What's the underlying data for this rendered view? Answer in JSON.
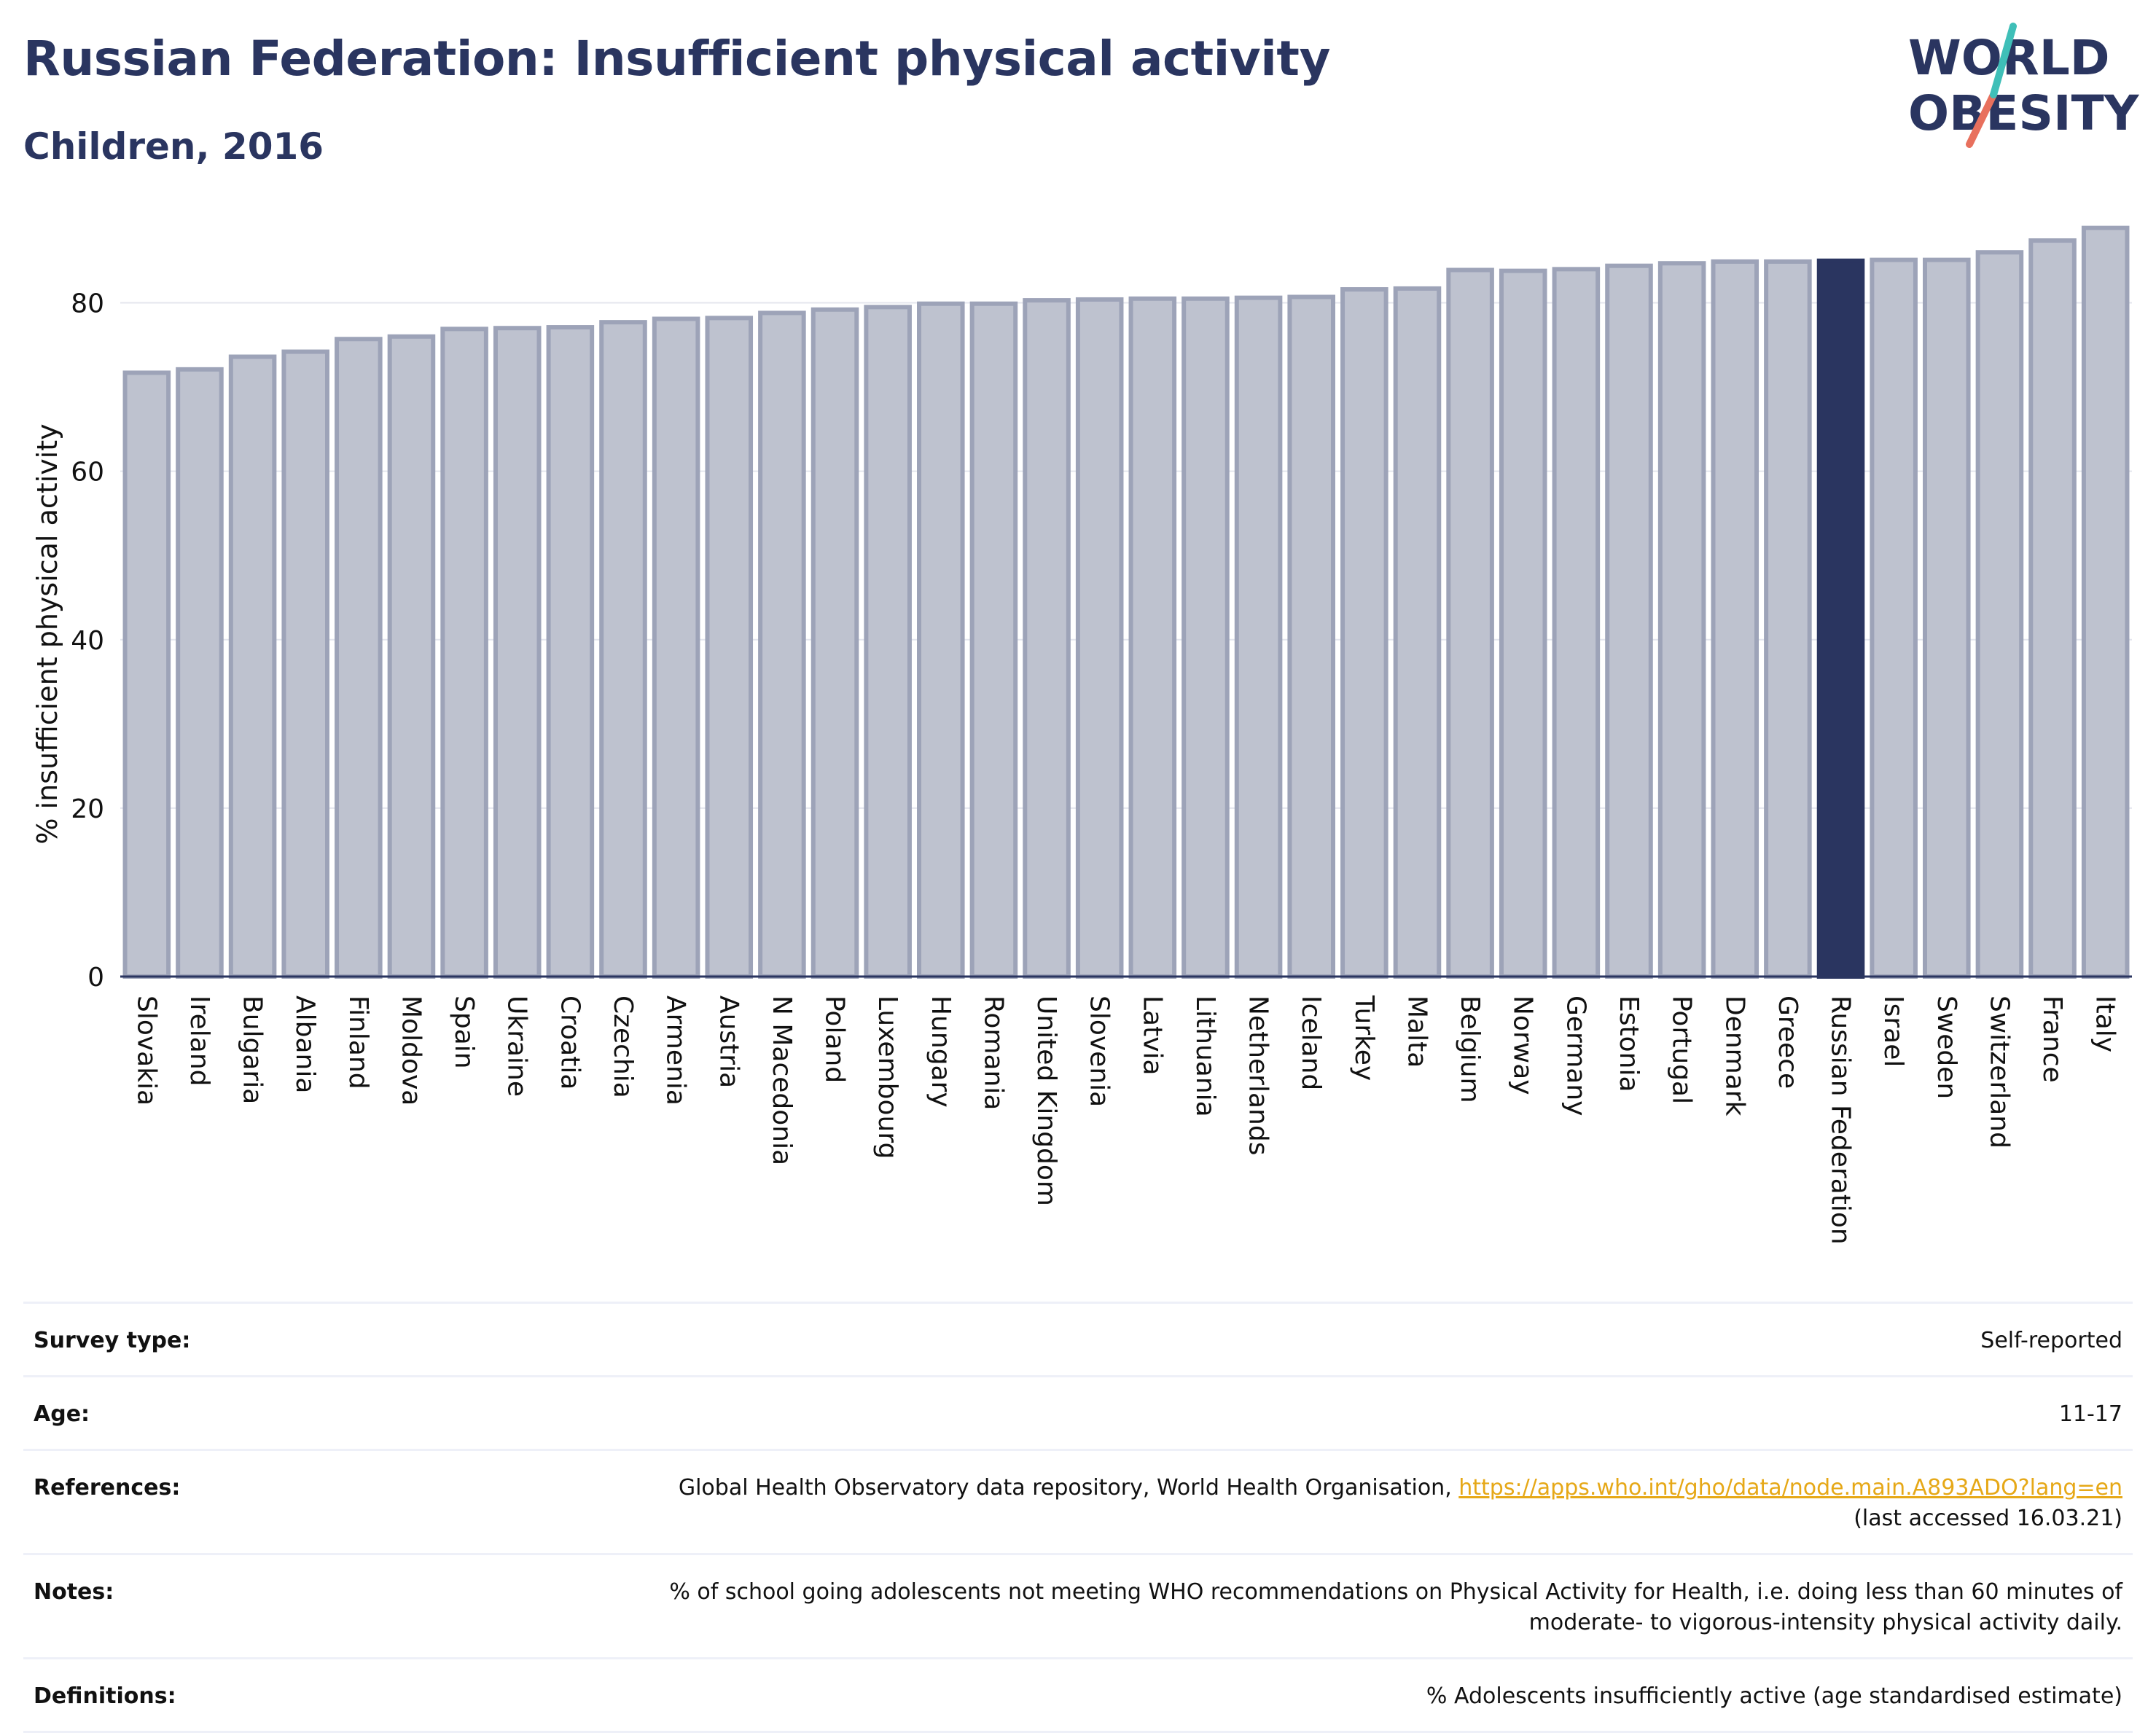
{
  "header": {
    "title": "Russian Federation: Insufficient physical activity",
    "subtitle": "Children, 2016"
  },
  "logo": {
    "line1": "WORLD",
    "line2": "OBESITY"
  },
  "chart_data": {
    "type": "bar",
    "title": "Russian Federation: Insufficient physical activity",
    "subtitle": "Children, 2016",
    "xlabel": "",
    "ylabel": "% insufficient physical activity",
    "ylim": [
      0,
      90
    ],
    "yticks": [
      0,
      20,
      40,
      60,
      80
    ],
    "grid": true,
    "highlight": "Russian Federation",
    "colors": {
      "bar": "#bec2cf",
      "bar_edge": "#9da3b8",
      "highlight": "#2a3560",
      "axis": "#2a3560"
    },
    "categories": [
      "Slovakia",
      "Ireland",
      "Bulgaria",
      "Albania",
      "Finland",
      "Moldova",
      "Spain",
      "Ukraine",
      "Croatia",
      "Czechia",
      "Armenia",
      "Austria",
      "N Macedonia",
      "Poland",
      "Luxembourg",
      "Hungary",
      "Romania",
      "United Kingdom",
      "Slovenia",
      "Latvia",
      "Lithuania",
      "Netherlands",
      "Iceland",
      "Turkey",
      "Malta",
      "Belgium",
      "Norway",
      "Germany",
      "Estonia",
      "Portugal",
      "Denmark",
      "Greece",
      "Russian Federation",
      "Israel",
      "Sweden",
      "Switzerland",
      "France",
      "Italy"
    ],
    "values": [
      71.7,
      72.1,
      73.6,
      74.2,
      75.7,
      76.0,
      76.9,
      77.0,
      77.1,
      77.7,
      78.1,
      78.2,
      78.8,
      79.2,
      79.5,
      79.9,
      79.9,
      80.3,
      80.4,
      80.5,
      80.5,
      80.6,
      80.7,
      81.6,
      81.7,
      83.9,
      83.8,
      84.0,
      84.4,
      84.7,
      84.9,
      84.9,
      85.0,
      85.1,
      85.1,
      86.0,
      87.4,
      88.9
    ]
  },
  "meta": [
    {
      "label": "Survey type:",
      "value": "Self-reported"
    },
    {
      "label": "Age:",
      "value": "11-17"
    },
    {
      "label": "References:",
      "value_prefix": "Global Health Observatory data repository, World Health Organisation, ",
      "link": "https://apps.who.int/gho/data/node.main.A893ADO?lang=en",
      "value_suffix": "(last accessed 16.03.21)"
    },
    {
      "label": "Notes:",
      "value": "% of school going adolescents not meeting WHO recommendations on Physical Activity for Health, i.e. doing less than 60 minutes of moderate- to vigorous-intensity physical activity daily."
    },
    {
      "label": "Definitions:",
      "value": "% Adolescents insufficiently active (age standardised estimate)"
    }
  ]
}
